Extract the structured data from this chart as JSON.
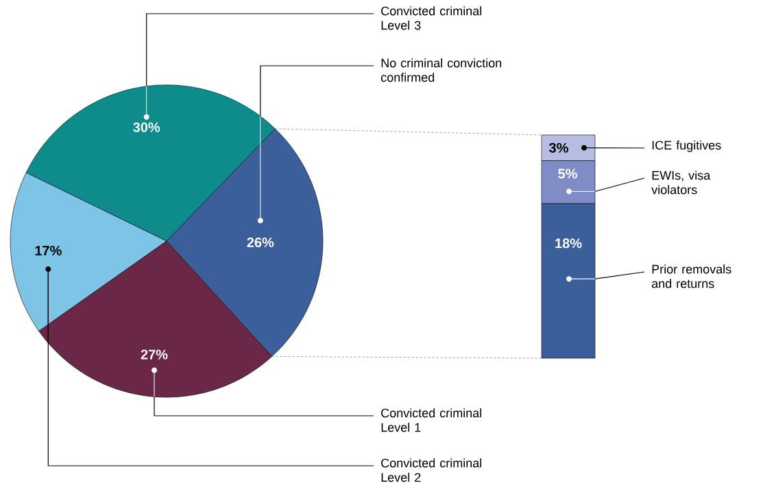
{
  "chart_data": [
    {
      "type": "pie",
      "categories": [
        "Convicted criminal Level 3",
        "Convicted criminal Level 2",
        "Convicted criminal Level 1",
        "No criminal conviction confirmed"
      ],
      "values": [
        30,
        17,
        27,
        26
      ],
      "colors": [
        "#0e8b8b",
        "#7ec4e6",
        "#6b2748",
        "#3a5f9a"
      ],
      "value_labels": [
        "30%",
        "17%",
        "27%",
        "26%"
      ]
    },
    {
      "type": "bar",
      "stacked": true,
      "legend": "right",
      "categories": [
        null
      ],
      "series": [
        {
          "name": "Prior removals and returns",
          "color": "#3a5f9a",
          "values": [
            18
          ],
          "value_labels": [
            "18%"
          ]
        },
        {
          "name": "EWIs, visa violators",
          "color": "#7f8cc6",
          "values": [
            5
          ],
          "value_labels": [
            "5%"
          ]
        },
        {
          "name": "ICE fugitives",
          "color": "#b6bde0",
          "values": [
            3
          ],
          "value_labels": [
            "3%"
          ]
        }
      ]
    }
  ]
}
